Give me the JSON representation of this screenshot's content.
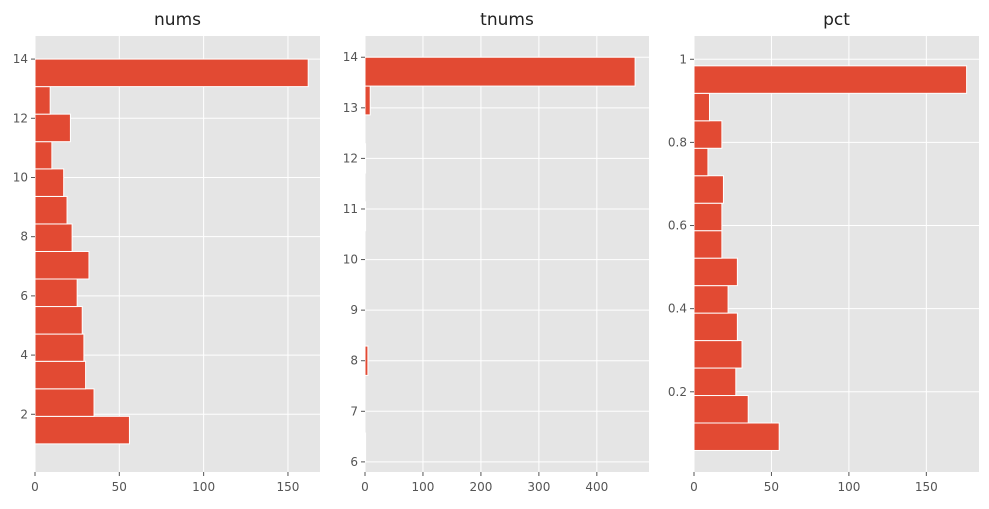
{
  "style": {
    "bar_color": "#E24A33",
    "bar_edge": "#ffffff",
    "panel_bg": "#E5E5E5",
    "grid_color": "#ffffff",
    "text_color": "#555555",
    "title_color": "#222222"
  },
  "chart_data": [
    {
      "type": "bar",
      "orientation": "horizontal",
      "title": "nums",
      "xlim": [
        0,
        169
      ],
      "ylim": [
        0.05,
        14.78
      ],
      "grid": true,
      "xticks": [
        0,
        50,
        100,
        150
      ],
      "yticks": [
        2,
        4,
        6,
        8,
        10,
        12,
        14
      ],
      "bin_edges": [
        1.0,
        1.93,
        2.86,
        3.79,
        4.71,
        5.64,
        6.57,
        7.5,
        8.43,
        9.36,
        10.29,
        11.21,
        12.14,
        13.07,
        14.0
      ],
      "values": [
        56,
        35,
        30,
        29,
        28,
        25,
        32,
        22,
        19,
        17,
        10,
        21,
        9,
        162
      ]
    },
    {
      "type": "bar",
      "orientation": "horizontal",
      "title": "tnums",
      "xlim": [
        0,
        490
      ],
      "ylim": [
        5.8,
        14.42
      ],
      "grid": true,
      "xticks": [
        0,
        100,
        200,
        300,
        400
      ],
      "yticks": [
        6,
        7,
        8,
        9,
        10,
        11,
        12,
        13,
        14
      ],
      "bin_edges": [
        6.0,
        6.57,
        7.14,
        7.71,
        8.29,
        8.86,
        9.43,
        10.0,
        10.57,
        11.14,
        11.71,
        12.29,
        12.86,
        13.43,
        14.0
      ],
      "values": [
        1,
        0,
        0,
        5,
        0,
        0,
        0,
        0,
        1,
        0,
        1,
        0,
        9,
        466
      ]
    },
    {
      "type": "bar",
      "orientation": "horizontal",
      "title": "pct",
      "xlim": [
        0,
        184
      ],
      "ylim": [
        0.007,
        1.056
      ],
      "grid": true,
      "xticks": [
        0,
        50,
        100,
        150
      ],
      "yticks": [
        0.2,
        0.4,
        0.6,
        0.8,
        1.0
      ],
      "bin_edges": [
        0.0588,
        0.1249,
        0.191,
        0.2571,
        0.3232,
        0.3893,
        0.4554,
        0.5215,
        0.5876,
        0.6537,
        0.7198,
        0.7859,
        0.852,
        0.9181,
        0.9842
      ],
      "values": [
        55,
        35,
        27,
        31,
        28,
        22,
        28,
        18,
        18,
        19,
        9,
        18,
        10,
        176
      ]
    }
  ]
}
